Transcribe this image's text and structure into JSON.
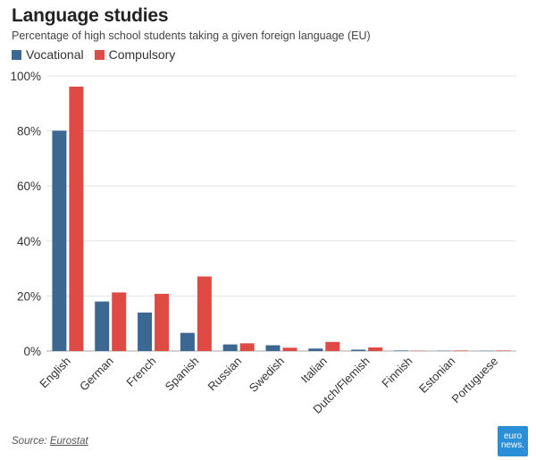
{
  "chart_data": {
    "type": "bar",
    "title": "Language studies",
    "subtitle": "Percentage of high school students taking a given foreign language (EU)",
    "categories": [
      "English",
      "German",
      "French",
      "Spanish",
      "Russian",
      "Swedish",
      "Italian",
      "Dutch/Flemish",
      "Finnish",
      "Estonian",
      "Portuguese"
    ],
    "series": [
      {
        "name": "Vocational",
        "color": "#3b6791",
        "values": [
          80.1,
          18.0,
          14.0,
          6.6,
          2.4,
          2.1,
          0.9,
          0.5,
          0.2,
          0.1,
          0.1
        ]
      },
      {
        "name": "Compulsory",
        "color": "#df4a45",
        "values": [
          96.1,
          21.3,
          20.8,
          27.1,
          2.8,
          1.2,
          3.3,
          1.3,
          0.1,
          0.2,
          0.2
        ]
      }
    ],
    "ylim": [
      0,
      100
    ],
    "yticks": [
      "0%",
      "20%",
      "40%",
      "60%",
      "80%",
      "100%"
    ],
    "ytick_values": [
      0,
      20,
      40,
      60,
      80,
      100
    ],
    "grid": true,
    "legend_position": "top-left"
  },
  "source": {
    "label": "Source:",
    "name": "Eurostat"
  },
  "logo": {
    "line1": "euro",
    "line2": "news."
  }
}
